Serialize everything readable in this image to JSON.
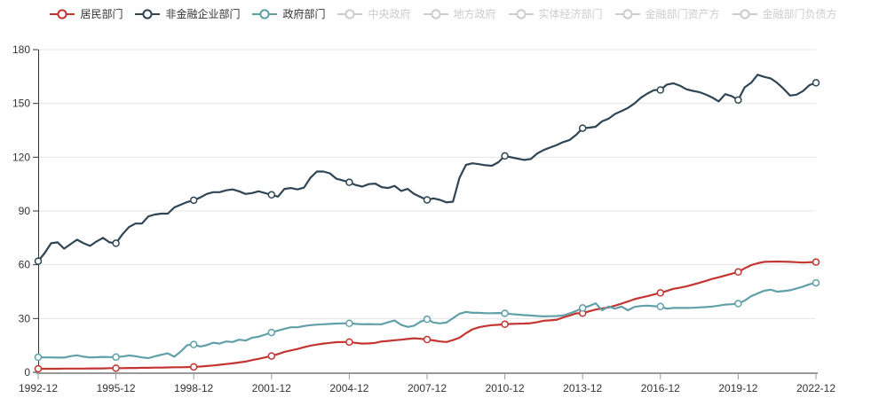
{
  "chart": {
    "background": "#ffffff",
    "colors": {
      "household": "#c23531",
      "non_financial_corporate": "#2f4554",
      "government": "#61a0a8",
      "disabled_legend": "#cccccc",
      "gridline": "#e6e6e6",
      "y_axis_line": "#333333",
      "x_axis_line": "#999999",
      "axis_text": "#333333",
      "marker_fill": "#ffffff"
    },
    "legend": {
      "items": [
        {
          "key": "household-sector",
          "label": "居民部门",
          "color": "#c23531",
          "enabled": true
        },
        {
          "key": "non-financial-corporate",
          "label": "非金融企业部门",
          "color": "#2f4554",
          "enabled": true
        },
        {
          "key": "government-sector",
          "label": "政府部门",
          "color": "#61a0a8",
          "enabled": true
        },
        {
          "key": "central-government",
          "label": "中央政府",
          "color": "#cccccc",
          "enabled": false
        },
        {
          "key": "local-government",
          "label": "地方政府",
          "color": "#cccccc",
          "enabled": false
        },
        {
          "key": "real-economy-sector",
          "label": "实体经济部门",
          "color": "#cccccc",
          "enabled": false
        },
        {
          "key": "financial-sector-assets",
          "label": "金融部门资产方",
          "color": "#cccccc",
          "enabled": false
        },
        {
          "key": "financial-sector-liabilities",
          "label": "金融部门负债方",
          "color": "#cccccc",
          "enabled": false
        }
      ]
    }
  },
  "chart_data": {
    "type": "line",
    "x_start": "1992-12",
    "x_end": "2022-12",
    "x_frequency": "quarterly",
    "n_points": 121,
    "x_tick_every": 12,
    "x_tick_labels": [
      "1992-12",
      "1995-12",
      "1998-12",
      "2001-12",
      "2004-12",
      "2007-12",
      "2010-12",
      "2013-12",
      "2016-12",
      "2019-12",
      "2022-12"
    ],
    "y_ticks": [
      0,
      30,
      60,
      90,
      120,
      150,
      180
    ],
    "ylim": [
      0,
      180
    ],
    "grid": "horizontal",
    "legend_position": "top",
    "marker_every": 12,
    "series": [
      {
        "name": "居民部门",
        "key": "household-sector",
        "color": "#c23531",
        "values": [
          2.0,
          2.0,
          2.0,
          2.0,
          2.1,
          2.1,
          2.1,
          2.1,
          2.2,
          2.2,
          2.2,
          2.3,
          2.3,
          2.3,
          2.4,
          2.4,
          2.5,
          2.5,
          2.6,
          2.6,
          2.7,
          2.8,
          2.8,
          2.9,
          3.0,
          3.2,
          3.5,
          3.8,
          4.2,
          4.6,
          5.0,
          5.5,
          6.0,
          6.8,
          7.5,
          8.3,
          9.1,
          10.2,
          11.4,
          12.2,
          13.0,
          14.0,
          14.9,
          15.5,
          16.0,
          16.4,
          16.8,
          16.9,
          16.9,
          16.4,
          16.0,
          16.1,
          16.4,
          17.2,
          17.5,
          17.9,
          18.2,
          18.6,
          19.0,
          18.7,
          18.3,
          17.8,
          17.2,
          16.9,
          18.0,
          19.3,
          21.8,
          24.0,
          25.1,
          25.8,
          26.3,
          26.5,
          26.8,
          27.0,
          27.1,
          27.2,
          27.4,
          28.0,
          28.8,
          29.0,
          29.3,
          30.6,
          31.7,
          32.9,
          33.0,
          34.0,
          35.0,
          35.6,
          36.2,
          37.2,
          38.3,
          39.5,
          40.8,
          41.7,
          42.5,
          43.4,
          44.3,
          45.4,
          46.6,
          47.2,
          47.9,
          48.9,
          49.9,
          51.0,
          52.1,
          53.0,
          54.0,
          55.0,
          56.0,
          58.0,
          59.8,
          60.8,
          61.6,
          61.7,
          61.8,
          61.7,
          61.6,
          61.4,
          61.2,
          61.4,
          61.5
        ]
      },
      {
        "name": "非金融企业部门",
        "key": "non-financial-corporate",
        "color": "#2f4554",
        "values": [
          62,
          66.5,
          72,
          72.5,
          69,
          71.5,
          74,
          72,
          70.5,
          73,
          75,
          72.5,
          72,
          77,
          81,
          83,
          83,
          87,
          88,
          88.5,
          88.5,
          92,
          93.5,
          95,
          96,
          97.5,
          99.5,
          100.5,
          100.5,
          101.5,
          102,
          101,
          99.5,
          100,
          101,
          100,
          99,
          98,
          102.3,
          102.8,
          102,
          103,
          108.5,
          112,
          112,
          111,
          108,
          107,
          106,
          104.5,
          103.6,
          105,
          105.3,
          103.3,
          102.8,
          104,
          101.2,
          102.3,
          99.5,
          97.8,
          96.2,
          97,
          96.2,
          94.8,
          95.2,
          108.5,
          115.7,
          116.6,
          116.1,
          115.5,
          115.2,
          117.2,
          120.7,
          119.9,
          119.2,
          118.5,
          119,
          122.1,
          124,
          125.4,
          126.8,
          128.4,
          129.6,
          132.5,
          136.2,
          136.5,
          137,
          140,
          141.5,
          144.1,
          145.8,
          147.5,
          150,
          153.2,
          155.5,
          157.4,
          157.5,
          160.5,
          161.2,
          159.9,
          157.9,
          157.0,
          156.3,
          155.0,
          153.3,
          151.1,
          155.2,
          154.1,
          151.9,
          159,
          161.5,
          166,
          164.8,
          164,
          161.5,
          158.2,
          154.4,
          154.9,
          156.9,
          160.2,
          161.5
        ]
      },
      {
        "name": "政府部门",
        "key": "government-sector",
        "color": "#61a0a8",
        "values": [
          8.4,
          8.3,
          8.3,
          8.2,
          8.2,
          9.0,
          9.5,
          8.7,
          8.3,
          8.4,
          8.6,
          8.5,
          8.5,
          8.8,
          9.4,
          9.0,
          8.3,
          7.9,
          8.9,
          9.8,
          10.6,
          8.7,
          11.6,
          15.2,
          15.5,
          14.4,
          15.2,
          16.5,
          16.0,
          17.2,
          16.9,
          18.2,
          17.7,
          19.3,
          19.9,
          21.0,
          22.2,
          23.3,
          24.3,
          25.1,
          25.1,
          25.8,
          26.3,
          26.6,
          26.8,
          27.0,
          27.2,
          27.3,
          27.3,
          27.0,
          26.8,
          26.9,
          26.8,
          26.8,
          28.0,
          28.9,
          26.5,
          25.3,
          26.0,
          28.3,
          29.6,
          27.8,
          27.3,
          27.8,
          30.2,
          32.7,
          33.7,
          33.2,
          33.2,
          33.0,
          33.0,
          33.1,
          32.9,
          32.5,
          32.2,
          31.9,
          31.7,
          31.4,
          31.2,
          31.3,
          31.4,
          31.7,
          32.9,
          34.2,
          35.9,
          37.0,
          38.5,
          34.6,
          36.7,
          35.5,
          36.7,
          34.6,
          36.5,
          37.0,
          37.2,
          36.9,
          36.7,
          35.5,
          35.9,
          35.9,
          35.9,
          36.0,
          36.2,
          36.4,
          36.7,
          37.2,
          37.8,
          38.0,
          38.3,
          40.0,
          42.5,
          44.0,
          45.5,
          46.1,
          45.0,
          45.3,
          45.8,
          46.8,
          47.8,
          49.1,
          49.9
        ]
      }
    ]
  }
}
